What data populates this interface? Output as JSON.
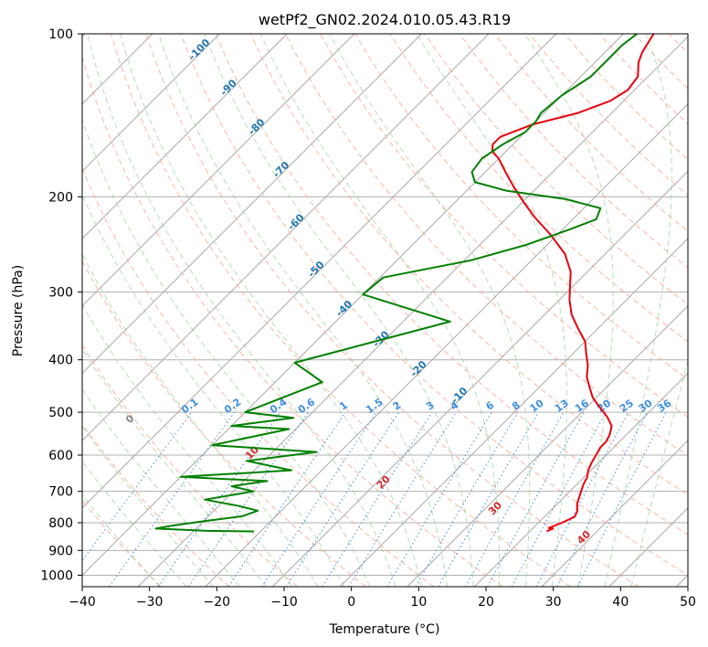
{
  "chart_data": {
    "type": "line",
    "title": "wetPf2_GN02.2024.010.05.43.R19",
    "xlabel": "Temperature (°C)",
    "ylabel": "Pressure (hPa)",
    "xlim": [
      -40,
      50
    ],
    "ylim": [
      1050,
      100
    ],
    "y_scale": "log",
    "skew": true,
    "grid": true,
    "x_ticks": [
      "−40",
      "−30",
      "−20",
      "−10",
      "0",
      "10",
      "20",
      "30",
      "40",
      "50"
    ],
    "x_tick_values": [
      -40,
      -30,
      -20,
      -10,
      0,
      10,
      20,
      30,
      40,
      50
    ],
    "y_ticks": [
      "100",
      "200",
      "300",
      "400",
      "500",
      "600",
      "700",
      "800",
      "900",
      "1000"
    ],
    "y_tick_values": [
      100,
      200,
      300,
      400,
      500,
      600,
      700,
      800,
      900,
      1000
    ],
    "isotherm_labels": [
      "-100",
      "-90",
      "-80",
      "-70",
      "-60",
      "-50",
      "-40",
      "-30",
      "-20",
      "-10"
    ],
    "isotherm_values": [
      -100,
      -90,
      -80,
      -70,
      -60,
      -50,
      -40,
      -30,
      -20,
      -10
    ],
    "mixing_ratio_labels": [
      "0.1",
      "0.2",
      "0.4",
      "0.6",
      "1",
      "1.5",
      "2",
      "3",
      "4",
      "6",
      "8",
      "10",
      "13",
      "16",
      "20",
      "25",
      "30",
      "36"
    ],
    "mixing_ratio_values": [
      0.1,
      0.2,
      0.4,
      0.6,
      1,
      1.5,
      2,
      3,
      4,
      6,
      8,
      10,
      13,
      16,
      20,
      25,
      30,
      36
    ],
    "moist_adiabat_labels": [
      "0",
      "10",
      "20",
      "30",
      "40"
    ],
    "moist_adiabat_values": [
      0,
      10,
      20,
      30,
      40
    ],
    "series": [
      {
        "color": "#e8000b",
        "points": [
          [
            22.5,
            830
          ],
          [
            23,
            820
          ],
          [
            22.3,
            818
          ],
          [
            23.5,
            800
          ],
          [
            24.5,
            780
          ],
          [
            24,
            760
          ],
          [
            23,
            740
          ],
          [
            22,
            710
          ],
          [
            21,
            680
          ],
          [
            20.5,
            660
          ],
          [
            19.6,
            640
          ],
          [
            19,
            620
          ],
          [
            18.5,
            600
          ],
          [
            18,
            580
          ],
          [
            18,
            566
          ],
          [
            17.5,
            550
          ],
          [
            16.5,
            530
          ],
          [
            14.5,
            510
          ],
          [
            12,
            490
          ],
          [
            9.5,
            470
          ],
          [
            7.5,
            450
          ],
          [
            5.5,
            430
          ],
          [
            4,
            410
          ],
          [
            2,
            390
          ],
          [
            0,
            370
          ],
          [
            -3,
            350
          ],
          [
            -6,
            330
          ],
          [
            -8.5,
            310
          ],
          [
            -10.5,
            292
          ],
          [
            -12.5,
            275
          ],
          [
            -16,
            255
          ],
          [
            -21,
            235
          ],
          [
            -26,
            218
          ],
          [
            -30,
            204
          ],
          [
            -33.5,
            192
          ],
          [
            -37,
            180
          ],
          [
            -40,
            170
          ],
          [
            -42,
            165
          ],
          [
            -43,
            160
          ],
          [
            -43,
            155
          ],
          [
            -40,
            147
          ],
          [
            -35,
            140
          ],
          [
            -32,
            133
          ],
          [
            -31,
            127
          ],
          [
            -31.5,
            120
          ],
          [
            -33.5,
            113
          ],
          [
            -34.5,
            108
          ],
          [
            -35,
            104
          ],
          [
            -35.5,
            100
          ]
        ]
      },
      {
        "color": "#008000",
        "points": [
          [
            -21,
            830
          ],
          [
            -28,
            828
          ],
          [
            -36,
            820
          ],
          [
            -34,
            810
          ],
          [
            -30,
            795
          ],
          [
            -25,
            778
          ],
          [
            -23.5,
            760
          ],
          [
            -27,
            745
          ],
          [
            -33,
            725
          ],
          [
            -27,
            700
          ],
          [
            -31,
            685
          ],
          [
            -26.5,
            670
          ],
          [
            -40,
            658
          ],
          [
            -24.5,
            640
          ],
          [
            -32.5,
            615
          ],
          [
            -23.5,
            592
          ],
          [
            -40,
            575
          ],
          [
            -31,
            537
          ],
          [
            -40,
            530
          ],
          [
            -32,
            512
          ],
          [
            -40,
            500
          ],
          [
            -33,
            440
          ],
          [
            -40,
            405
          ],
          [
            -23,
            340
          ],
          [
            -40,
            303
          ],
          [
            -39.5,
            282
          ],
          [
            -36,
            275
          ],
          [
            -29,
            262
          ],
          [
            -23,
            245
          ],
          [
            -19,
            230
          ],
          [
            -16.5,
            220
          ],
          [
            -17.5,
            210
          ],
          [
            -24,
            202
          ],
          [
            -34,
            195
          ],
          [
            -40,
            188
          ],
          [
            -42,
            180
          ],
          [
            -42.5,
            170
          ],
          [
            -41.5,
            160
          ],
          [
            -40,
            152
          ],
          [
            -40,
            145
          ],
          [
            -40.5,
            140
          ],
          [
            -40,
            130
          ],
          [
            -38.5,
            120
          ],
          [
            -38.5,
            110
          ],
          [
            -38.5,
            105
          ],
          [
            -38,
            100
          ]
        ]
      }
    ]
  }
}
